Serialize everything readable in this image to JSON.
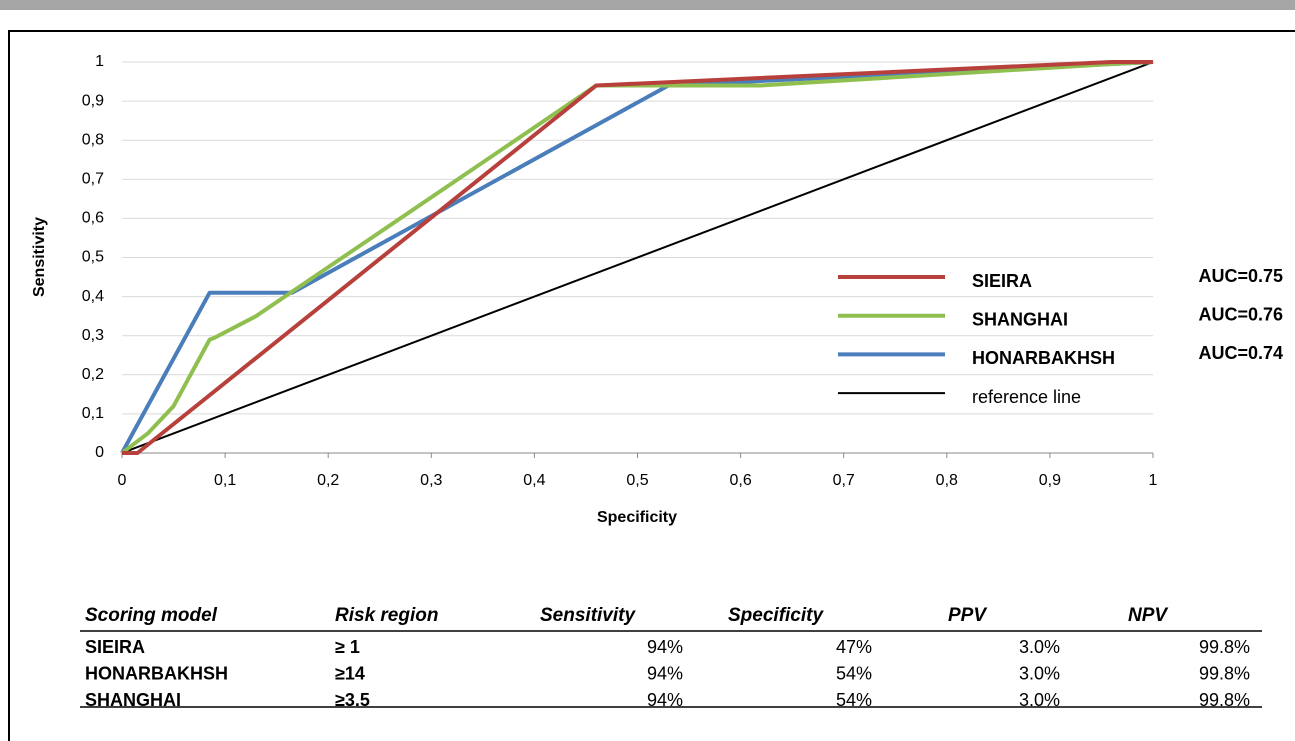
{
  "chart_data": {
    "type": "line",
    "x_label": "Specificity",
    "y_label": "Sensitivity",
    "xlim": [
      0,
      1
    ],
    "ylim": [
      0,
      1
    ],
    "xticks": [
      0,
      {
        "value": 0.1,
        "label": "0,1"
      },
      {
        "value": 0.2,
        "label": "0,2"
      },
      {
        "value": 0.3,
        "label": "0,3"
      },
      {
        "value": 0.4,
        "label": "0,4"
      },
      {
        "value": 0.5,
        "label": "0,5"
      },
      {
        "value": 0.6,
        "label": "0,6"
      },
      {
        "value": 0.7,
        "label": "0,7"
      },
      {
        "value": 0.8,
        "label": "0,8"
      },
      {
        "value": 0.9,
        "label": "0,9"
      },
      1
    ],
    "yticks": [
      0,
      {
        "value": 0.1,
        "label": "0,1"
      },
      {
        "value": 0.2,
        "label": "0,2"
      },
      {
        "value": 0.3,
        "label": "0,3"
      },
      {
        "value": 0.4,
        "label": "0,4"
      },
      {
        "value": 0.5,
        "label": "0,5"
      },
      {
        "value": 0.6,
        "label": "0,6"
      },
      {
        "value": 0.7,
        "label": "0,7"
      },
      {
        "value": 0.8,
        "label": "0,8"
      },
      {
        "value": 0.9,
        "label": "0,9"
      },
      1
    ],
    "grid": true,
    "series": [
      {
        "name": "SIEIRA",
        "auc": "AUC=0.75",
        "color": "#b8403c",
        "x": [
          0,
          0.015,
          0.46,
          0.96,
          1
        ],
        "values": [
          0,
          0,
          0.94,
          1,
          1
        ]
      },
      {
        "name": "SHANGHAI",
        "auc": "AUC=0.76",
        "color": "#8fbf4f",
        "x": [
          0,
          0.025,
          0.05,
          0.085,
          0.09,
          0.13,
          0.46,
          0.62,
          0.96,
          1
        ],
        "values": [
          0,
          0.05,
          0.12,
          0.29,
          0.295,
          0.35,
          0.94,
          0.94,
          0.995,
          1
        ]
      },
      {
        "name": "HONARBAKHSH",
        "auc": "AUC=0.74",
        "color": "#4a7ebb",
        "x": [
          0,
          0.085,
          0.165,
          0.53,
          1
        ],
        "values": [
          0,
          0.41,
          0.41,
          0.94,
          1
        ]
      },
      {
        "name": "reference line",
        "color": "#000000",
        "x": [
          0,
          1
        ],
        "values": [
          0,
          1
        ]
      }
    ]
  },
  "table": {
    "header": [
      "Scoring model",
      "Risk region",
      "Sensitivity",
      "Specificity",
      "PPV",
      "NPV"
    ],
    "rows": [
      [
        "SIEIRA",
        "≥ 1",
        "94%",
        "47%",
        "3.0%",
        "99.8%"
      ],
      [
        "HONARBAKHSH",
        "≥14",
        "94%",
        "54%",
        "3.0%",
        "99.8%"
      ],
      [
        "SHANGHAI",
        "≥3.5",
        "94%",
        "54%",
        "3.0%",
        "99.8%"
      ]
    ]
  }
}
